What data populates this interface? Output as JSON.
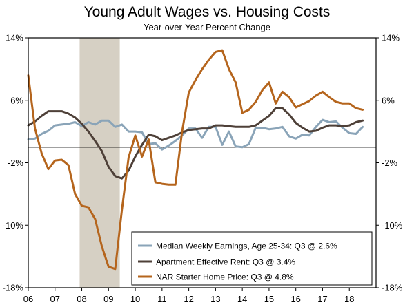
{
  "chart_data": {
    "type": "line",
    "title": "Young Adult Wages vs. Housing Costs",
    "subtitle": "Year-over-Year Percent Change",
    "xlabel": "",
    "ylabel": "",
    "ylim": [
      -18,
      14
    ],
    "xlim": [
      2006.0,
      2019.0
    ],
    "y_ticks": [
      14,
      6,
      -2,
      -10,
      -18
    ],
    "y_tick_labels": [
      "14%",
      "6%",
      "-2%",
      "-10%",
      "-18%"
    ],
    "x_ticks": [
      2006,
      2007,
      2008,
      2009,
      2010,
      2011,
      2012,
      2013,
      2014,
      2015,
      2016,
      2017,
      2018
    ],
    "x_tick_labels": [
      "06",
      "07",
      "08",
      "09",
      "10",
      "11",
      "12",
      "13",
      "14",
      "15",
      "16",
      "17",
      "18"
    ],
    "zero_line": 0,
    "recession": {
      "start": 2007.92,
      "end": 2009.42,
      "color": "#d6d0c4"
    },
    "legend_position": "bottom-right",
    "series": [
      {
        "name": "Median Weekly Earnings, Age 25-34: Q3 @ 2.6%",
        "color": "#8aa4b8",
        "x": [
          2006.0,
          2006.25,
          2006.5,
          2006.75,
          2007.0,
          2007.25,
          2007.5,
          2007.75,
          2008.0,
          2008.25,
          2008.5,
          2008.75,
          2009.0,
          2009.25,
          2009.5,
          2009.75,
          2010.0,
          2010.25,
          2010.5,
          2010.75,
          2011.0,
          2011.25,
          2011.5,
          2011.75,
          2012.0,
          2012.25,
          2012.5,
          2012.75,
          2013.0,
          2013.25,
          2013.5,
          2013.75,
          2014.0,
          2014.25,
          2014.5,
          2014.75,
          2015.0,
          2015.25,
          2015.5,
          2015.75,
          2016.0,
          2016.25,
          2016.5,
          2016.75,
          2017.0,
          2017.25,
          2017.5,
          2017.75,
          2018.0,
          2018.25,
          2018.5
        ],
        "values": [
          1.0,
          1.1,
          1.7,
          2.1,
          2.8,
          2.9,
          3.0,
          3.2,
          2.7,
          3.2,
          2.9,
          3.4,
          3.4,
          2.6,
          2.9,
          2.0,
          2.0,
          1.9,
          0.4,
          0.5,
          -0.3,
          0.2,
          0.8,
          1.5,
          2.4,
          2.4,
          1.2,
          2.6,
          2.6,
          0.3,
          2.0,
          0.1,
          0.0,
          0.4,
          2.5,
          2.5,
          2.3,
          2.4,
          2.6,
          1.4,
          1.1,
          1.6,
          1.5,
          2.6,
          3.5,
          3.2,
          3.3,
          2.5,
          1.8,
          1.7,
          2.6
        ]
      },
      {
        "name": "Apartment Effective Rent: Q3 @ 3.4%",
        "color": "#4e4038",
        "x": [
          2006.0,
          2006.25,
          2006.5,
          2006.75,
          2007.0,
          2007.25,
          2007.5,
          2007.75,
          2008.0,
          2008.25,
          2008.5,
          2008.75,
          2009.0,
          2009.25,
          2009.5,
          2009.75,
          2010.0,
          2010.25,
          2010.5,
          2010.75,
          2011.0,
          2011.25,
          2011.5,
          2011.75,
          2012.0,
          2012.25,
          2012.5,
          2012.75,
          2013.0,
          2013.25,
          2013.5,
          2013.75,
          2014.0,
          2014.25,
          2014.5,
          2014.75,
          2015.0,
          2015.25,
          2015.5,
          2015.75,
          2016.0,
          2016.25,
          2016.5,
          2016.75,
          2017.0,
          2017.25,
          2017.5,
          2017.75,
          2018.0,
          2018.25,
          2018.5
        ],
        "values": [
          2.8,
          3.3,
          4.0,
          4.6,
          4.6,
          4.6,
          4.3,
          3.8,
          3.0,
          2.0,
          0.8,
          -0.5,
          -2.5,
          -3.7,
          -4.0,
          -3.0,
          -1.2,
          0.3,
          1.6,
          1.4,
          0.9,
          1.2,
          1.5,
          1.9,
          2.2,
          2.3,
          2.4,
          2.4,
          2.8,
          2.8,
          2.7,
          2.6,
          2.6,
          2.6,
          2.8,
          3.4,
          4.0,
          5.0,
          5.0,
          4.2,
          3.1,
          2.5,
          2.0,
          2.1,
          2.5,
          2.8,
          2.8,
          2.7,
          2.8,
          3.2,
          3.4
        ]
      },
      {
        "name": "NAR Starter Home Price: Q3 @ 4.8%",
        "color": "#b5651d",
        "x": [
          2006.0,
          2006.25,
          2006.5,
          2006.75,
          2007.0,
          2007.25,
          2007.5,
          2007.75,
          2008.0,
          2008.25,
          2008.5,
          2008.75,
          2009.0,
          2009.25,
          2009.5,
          2009.75,
          2010.0,
          2010.25,
          2010.5,
          2010.75,
          2011.0,
          2011.25,
          2011.5,
          2011.75,
          2012.0,
          2012.25,
          2012.5,
          2012.75,
          2013.0,
          2013.25,
          2013.5,
          2013.75,
          2014.0,
          2014.25,
          2014.5,
          2014.75,
          2015.0,
          2015.25,
          2015.5,
          2015.75,
          2016.0,
          2016.25,
          2016.5,
          2016.75,
          2017.0,
          2017.25,
          2017.5,
          2017.75,
          2018.0,
          2018.25,
          2018.5
        ],
        "values": [
          9.2,
          2.4,
          -0.8,
          -2.8,
          -1.7,
          -1.6,
          -2.3,
          -6.0,
          -7.5,
          -7.7,
          -9.2,
          -12.7,
          -15.3,
          -15.6,
          -8.0,
          -1.3,
          1.5,
          -1.2,
          1.0,
          -4.5,
          -4.7,
          -4.8,
          -4.8,
          2.0,
          7.0,
          8.6,
          10.0,
          11.2,
          12.2,
          12.4,
          10.0,
          8.3,
          4.4,
          4.8,
          5.8,
          7.3,
          8.3,
          5.6,
          7.1,
          6.4,
          5.1,
          5.5,
          5.9,
          6.6,
          7.1,
          6.4,
          5.8,
          5.6,
          5.6,
          5.0,
          4.8
        ]
      }
    ]
  }
}
